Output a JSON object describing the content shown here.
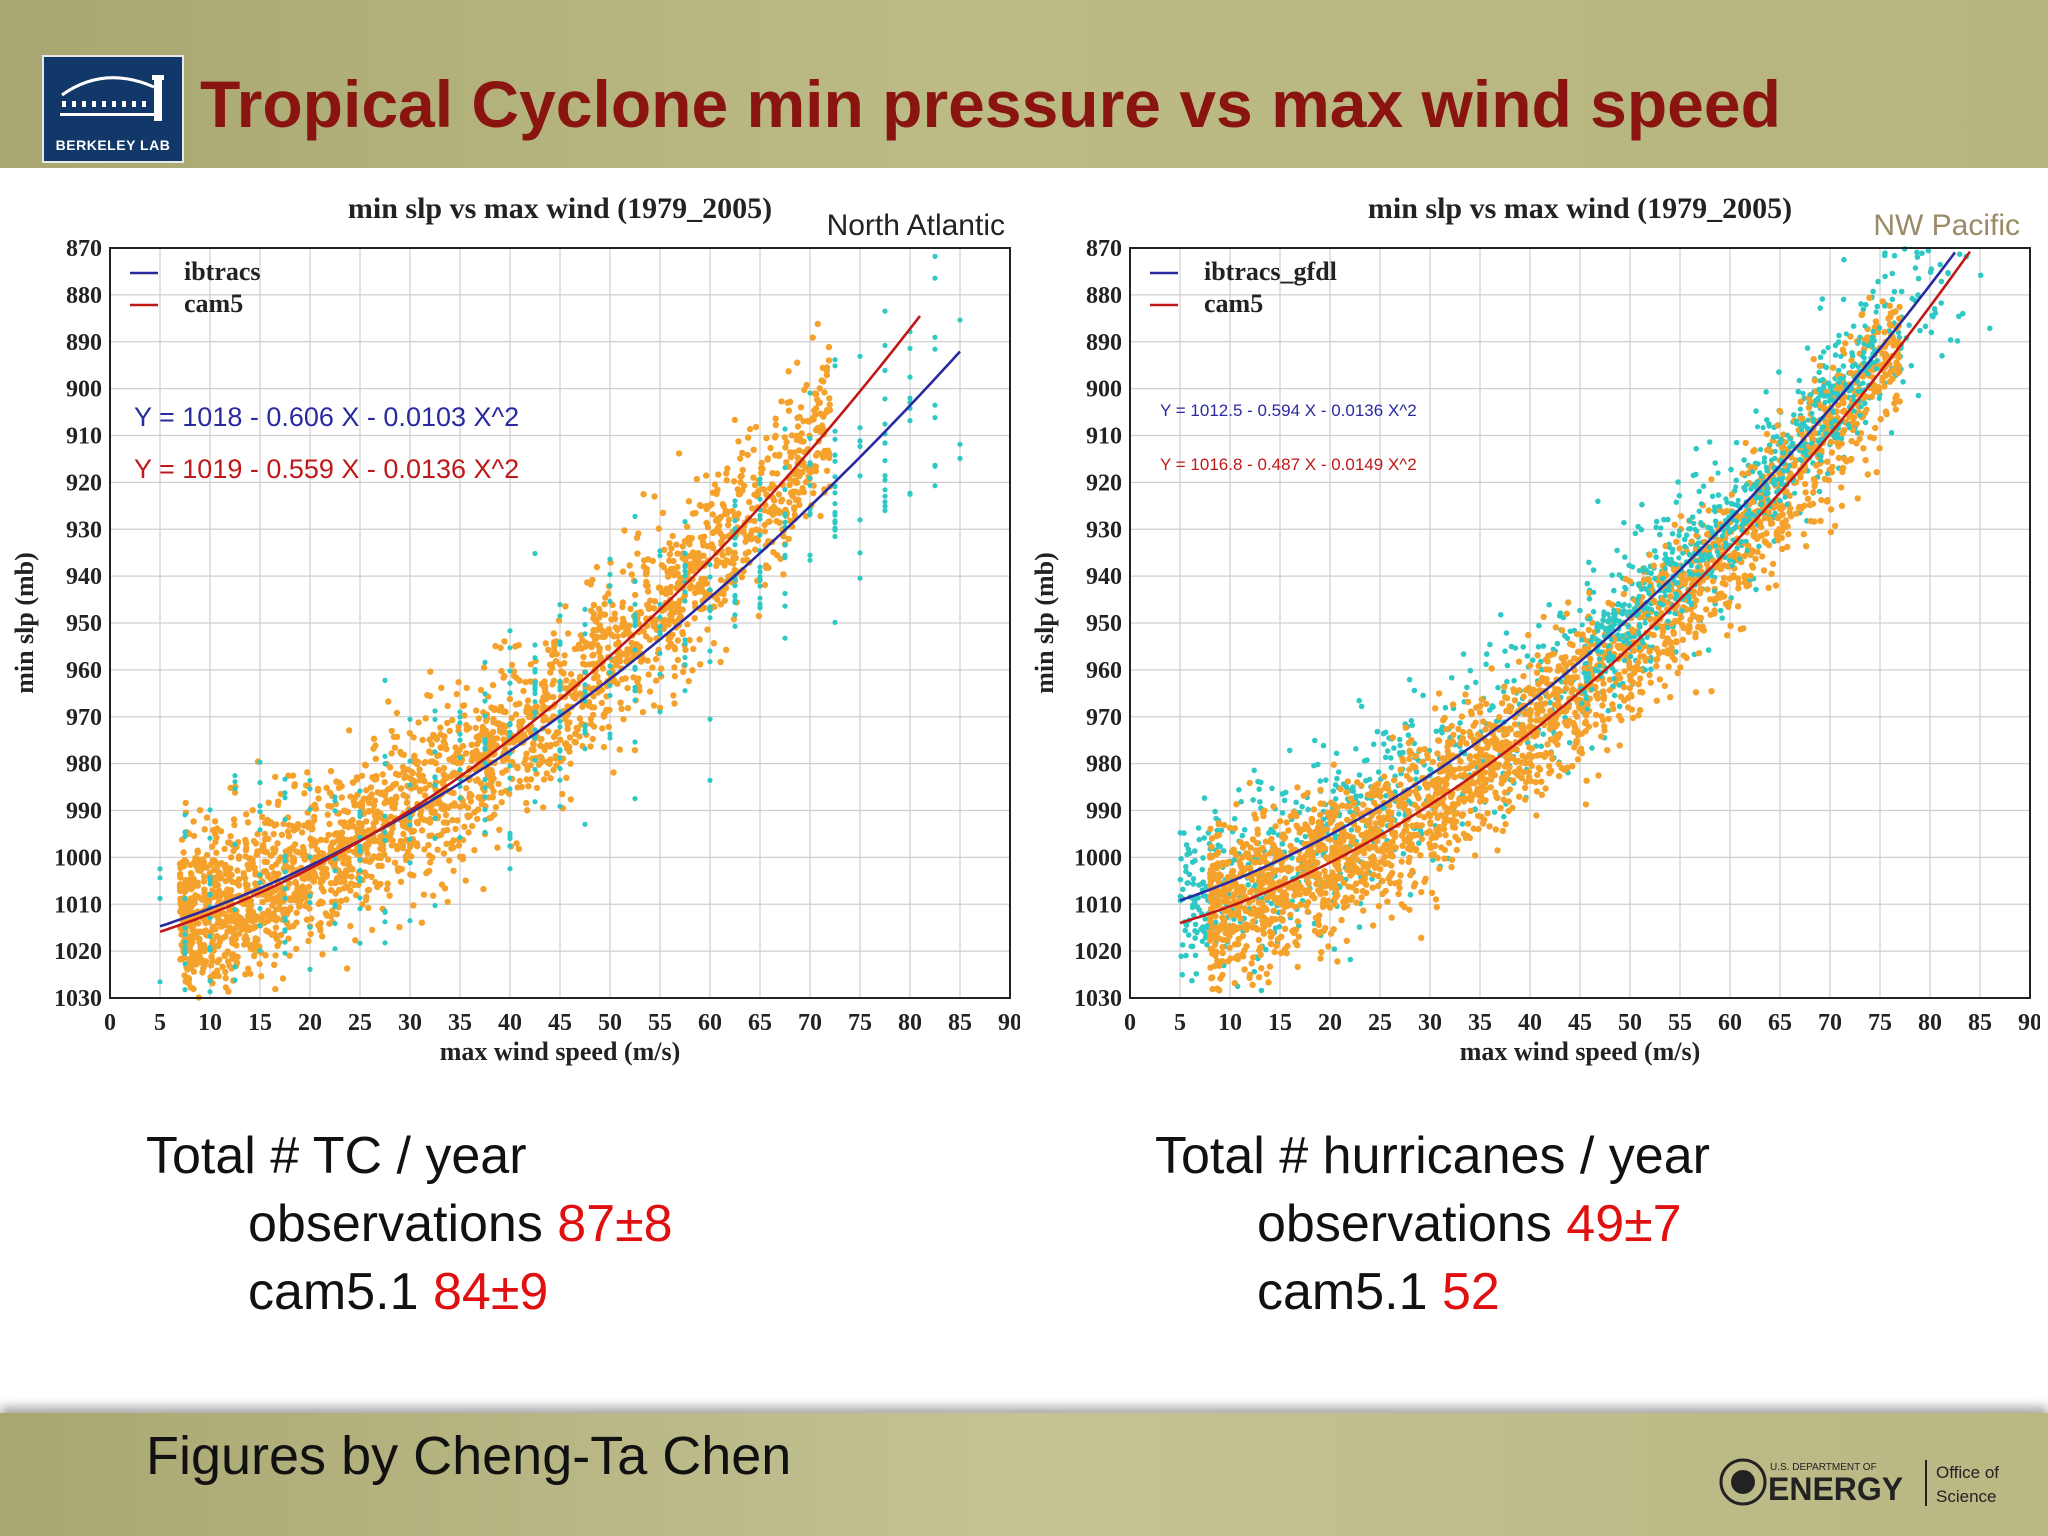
{
  "header": {
    "title": "Tropical Cyclone min pressure vs max wind speed",
    "logo_text": "BERKELEY LAB"
  },
  "stats": {
    "left": {
      "heading": "Total # TC / year",
      "obs_label": "observations",
      "obs_value": "87±8",
      "cam_label": "cam5.1",
      "cam_value": "84±9"
    },
    "right": {
      "heading": "Total # hurricanes / year",
      "obs_label": "observations",
      "obs_value": "49±7",
      "cam_label": "cam5.1",
      "cam_value": "52"
    }
  },
  "footer": {
    "credit": "Figures by Cheng-Ta Chen",
    "doe_small": "U.S. DEPARTMENT OF",
    "doe_big": "ENERGY",
    "office_line1": "Office of",
    "office_line2": "Science"
  },
  "colors": {
    "title": "#8a1410",
    "obs_scatter": "#2ec9c4",
    "model_scatter": "#f5a22d",
    "obs_fit": "#2a2aa0",
    "model_fit": "#c01818",
    "highlight_text": "#e01010"
  },
  "chart_data": [
    {
      "type": "scatter",
      "title": "min slp vs max wind  (1979_2005)",
      "region": "North Atlantic",
      "xlabel": "max wind speed (m/s)",
      "ylabel": "min slp (mb)",
      "xlim": [
        0,
        90
      ],
      "ylim": [
        1030,
        870
      ],
      "xticks": [
        0,
        5,
        10,
        15,
        20,
        25,
        30,
        35,
        40,
        45,
        50,
        55,
        60,
        65,
        70,
        75,
        80,
        85,
        90
      ],
      "yticks": [
        870,
        880,
        890,
        900,
        910,
        920,
        930,
        940,
        950,
        960,
        970,
        980,
        990,
        1000,
        1010,
        1020,
        1030
      ],
      "grid": true,
      "legend_position": "top-left",
      "series": [
        {
          "name": "ibtracs",
          "kind": "fit",
          "equation": "Y = 1018 - 0.606 X - 0.0103 X^2",
          "coef": [
            1018,
            -0.606,
            -0.0103
          ],
          "x_range": [
            5,
            85
          ]
        },
        {
          "name": "cam5",
          "kind": "fit",
          "equation": "Y = 1019 - 0.559 X - 0.0136 X^2",
          "coef": [
            1019,
            -0.559,
            -0.0136
          ],
          "x_range": [
            5,
            81
          ]
        }
      ],
      "scatter": {
        "model": {
          "x_range": [
            7,
            72
          ],
          "center_coef": [
            1019,
            -0.559,
            -0.0136
          ],
          "spread_mb": 9
        },
        "obs": {
          "x_range": [
            5,
            85
          ],
          "center_coef": [
            1018,
            -0.606,
            -0.0103
          ],
          "spread_mb": 13
        }
      }
    },
    {
      "type": "scatter",
      "title": "min slp vs max wind  (1979_2005)",
      "region": "NW Pacific",
      "xlabel": "max wind speed (m/s)",
      "ylabel": "min slp (mb)",
      "xlim": [
        0,
        90
      ],
      "ylim": [
        1030,
        870
      ],
      "xticks": [
        0,
        5,
        10,
        15,
        20,
        25,
        30,
        35,
        40,
        45,
        50,
        55,
        60,
        65,
        70,
        75,
        80,
        85,
        90
      ],
      "yticks": [
        870,
        880,
        890,
        900,
        910,
        920,
        930,
        940,
        950,
        960,
        970,
        980,
        990,
        1000,
        1010,
        1020,
        1030
      ],
      "grid": true,
      "legend_position": "top-left",
      "series": [
        {
          "name": "ibtracs_gfdl",
          "kind": "fit",
          "equation": "Y = 1012.5 - 0.594 X - 0.0136 X^2",
          "coef": [
            1012.5,
            -0.594,
            -0.0136
          ],
          "x_range": [
            5,
            85
          ]
        },
        {
          "name": "cam5",
          "kind": "fit",
          "equation": "Y = 1016.8 - 0.487 X - 0.0149 X^2",
          "coef": [
            1016.8,
            -0.487,
            -0.0149
          ],
          "x_range": [
            5,
            85
          ]
        }
      ],
      "scatter": {
        "model": {
          "x_range": [
            8,
            77
          ],
          "center_coef": [
            1016.8,
            -0.487,
            -0.0149
          ],
          "spread_mb": 8
        },
        "obs": {
          "x_range": [
            5,
            86
          ],
          "center_coef": [
            1012.5,
            -0.594,
            -0.0136
          ],
          "spread_mb": 10
        }
      }
    }
  ]
}
